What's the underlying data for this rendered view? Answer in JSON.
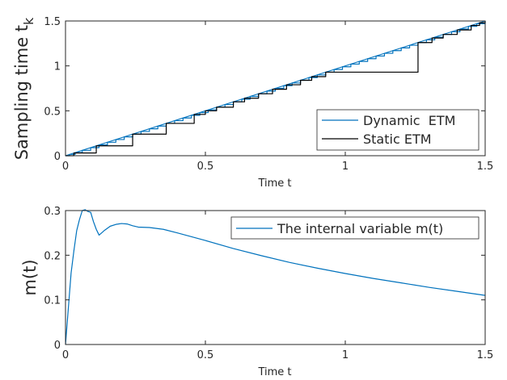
{
  "chart_data": [
    {
      "type": "line",
      "xlabel": "Time t",
      "ylabel_main": "Sampling time t",
      "ylabel_sub": "k",
      "xlim": [
        0,
        1.5
      ],
      "ylim": [
        0,
        1.5
      ],
      "xticks": [
        0,
        0.5,
        1,
        1.5
      ],
      "xtick_labels": [
        "0",
        "0.5",
        "1",
        "1.5"
      ],
      "yticks": [
        0,
        0.5,
        1,
        1.5
      ],
      "ytick_labels": [
        "0",
        "0.5",
        "1",
        "1.5"
      ],
      "grid": false,
      "legend_position": "bottom-right",
      "series": [
        {
          "name": "Dynamic  ETM",
          "color": "#0072BD",
          "style": "staircase",
          "x": [
            0,
            0.015,
            0.035,
            0.06,
            0.09,
            0.12,
            0.15,
            0.18,
            0.21,
            0.24,
            0.27,
            0.3,
            0.33,
            0.36,
            0.39,
            0.42,
            0.45,
            0.48,
            0.51,
            0.54,
            0.57,
            0.6,
            0.63,
            0.66,
            0.69,
            0.72,
            0.75,
            0.78,
            0.81,
            0.84,
            0.87,
            0.9,
            0.93,
            0.96,
            0.99,
            1.02,
            1.05,
            1.08,
            1.11,
            1.14,
            1.17,
            1.2,
            1.23,
            1.26,
            1.29,
            1.32,
            1.35,
            1.38,
            1.41,
            1.44,
            1.47,
            1.5
          ]
        },
        {
          "name": "Static ETM",
          "color": "#000000",
          "style": "staircase",
          "x": [
            0,
            0.03,
            0.11,
            0.24,
            0.36,
            0.46,
            0.5,
            0.54,
            0.6,
            0.64,
            0.69,
            0.74,
            0.79,
            0.84,
            0.88,
            0.93,
            1.26,
            1.31,
            1.35,
            1.4,
            1.45,
            1.48,
            1.5
          ]
        }
      ]
    },
    {
      "type": "line",
      "xlabel": "Time t",
      "ylabel": "m(t)",
      "xlim": [
        0,
        1.5
      ],
      "ylim": [
        0,
        0.3
      ],
      "xticks": [
        0,
        0.5,
        1,
        1.5
      ],
      "xtick_labels": [
        "0",
        "0.5",
        "1",
        "1.5"
      ],
      "yticks": [
        0,
        0.1,
        0.2,
        0.3
      ],
      "ytick_labels": [
        "0",
        "0.1",
        "0.2",
        "0.3"
      ],
      "grid": false,
      "legend_position": "top-right",
      "series": [
        {
          "name": "The internal variable m(t)",
          "color": "#0072BD",
          "x": [
            0,
            0.01,
            0.02,
            0.03,
            0.04,
            0.05,
            0.06,
            0.07,
            0.08,
            0.09,
            0.1,
            0.11,
            0.12,
            0.14,
            0.16,
            0.18,
            0.2,
            0.22,
            0.24,
            0.26,
            0.3,
            0.35,
            0.4,
            0.5,
            0.6,
            0.7,
            0.8,
            0.9,
            1.0,
            1.1,
            1.2,
            1.3,
            1.4,
            1.5
          ],
          "y": [
            0,
            0.08,
            0.16,
            0.21,
            0.255,
            0.28,
            0.3,
            0.302,
            0.298,
            0.296,
            0.275,
            0.258,
            0.245,
            0.256,
            0.265,
            0.269,
            0.271,
            0.27,
            0.266,
            0.263,
            0.262,
            0.258,
            0.25,
            0.233,
            0.215,
            0.199,
            0.184,
            0.171,
            0.159,
            0.148,
            0.138,
            0.128,
            0.119,
            0.11
          ]
        }
      ]
    }
  ]
}
